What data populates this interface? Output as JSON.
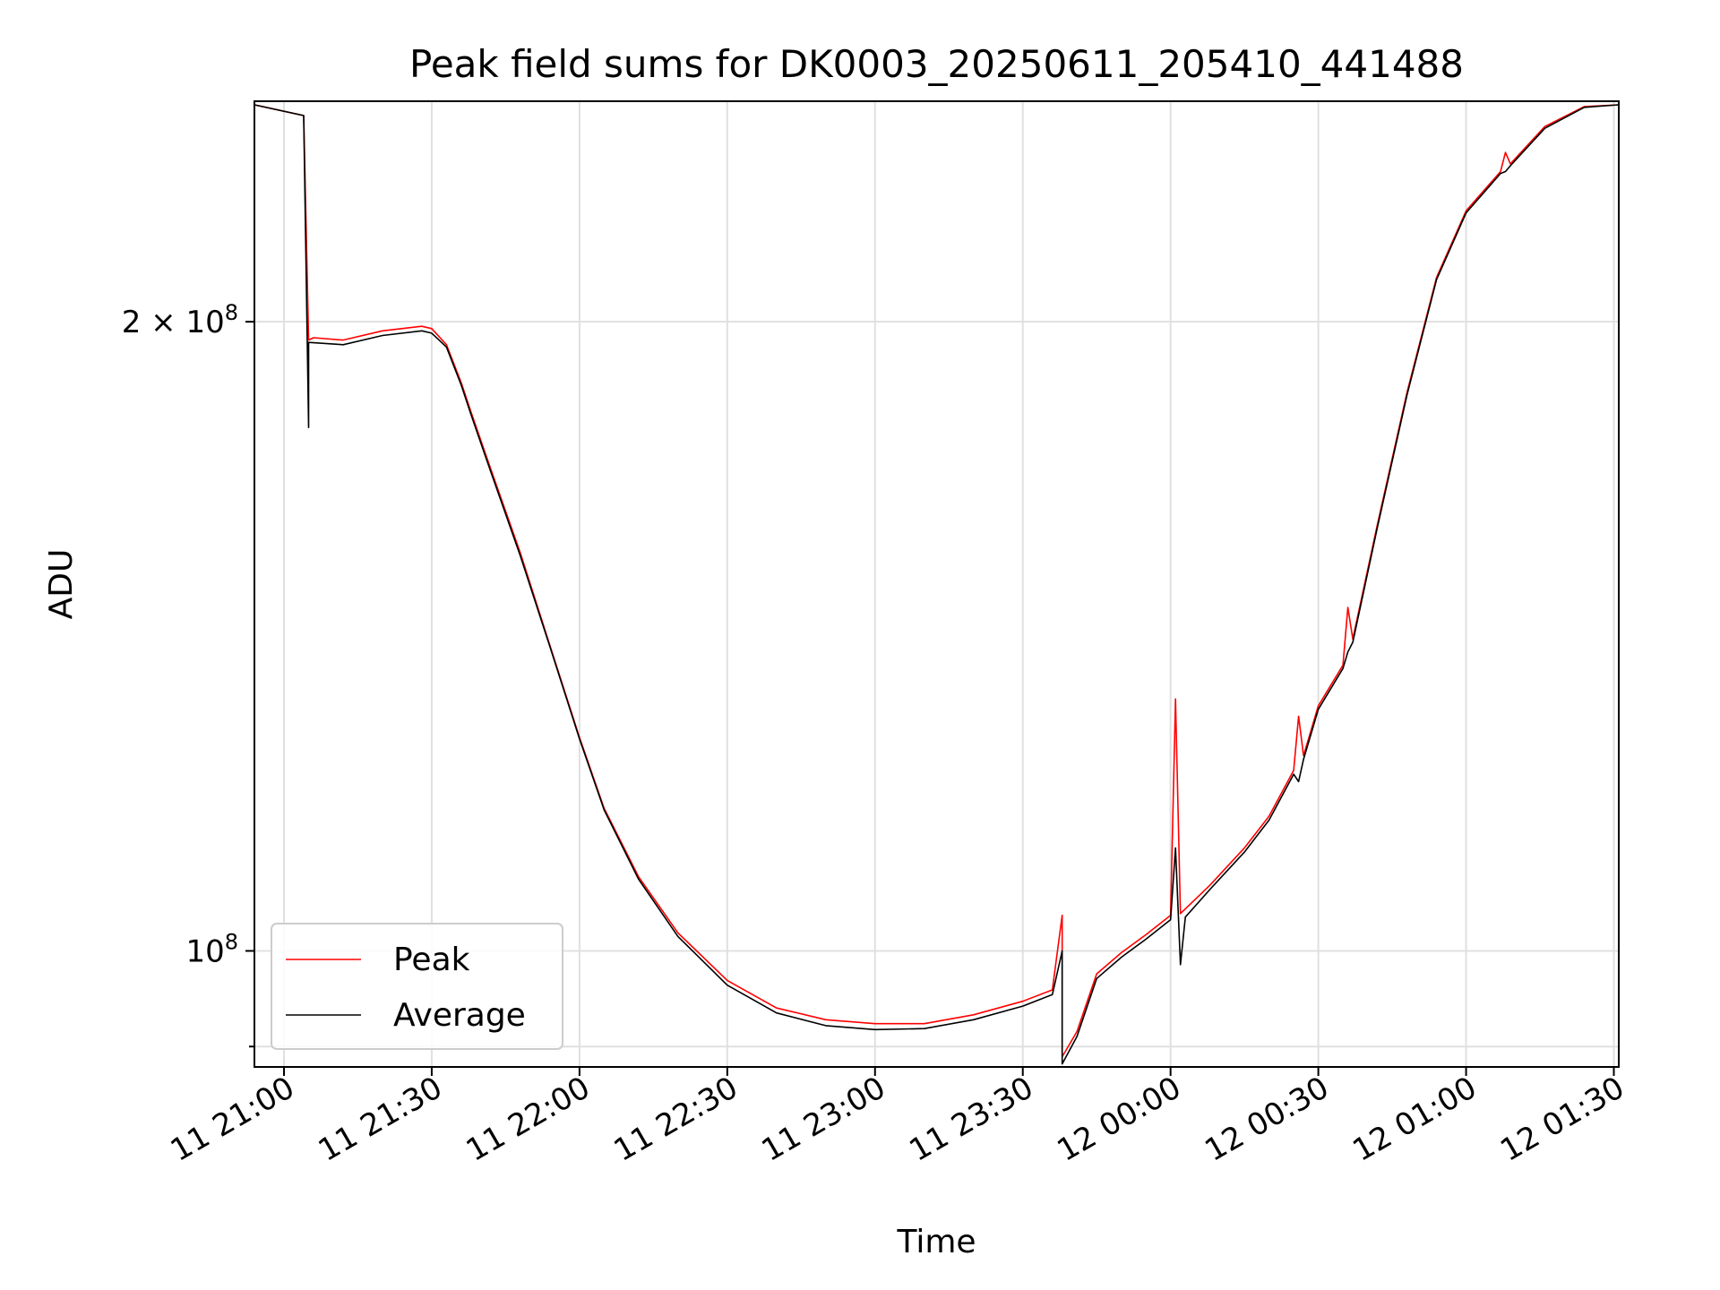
{
  "chart_data": {
    "type": "line",
    "title": "Peak field sums for DK0003_20250611_205410_441488",
    "xlabel": "Time",
    "ylabel": "ADU",
    "yscale": "log",
    "grid": true,
    "legend_location": "lower-left",
    "x_ticks": [
      "11 21:00",
      "11 21:30",
      "11 22:00",
      "11 22:30",
      "11 23:00",
      "11 23:30",
      "12 00:00",
      "12 00:30",
      "12 01:00",
      "12 01:30"
    ],
    "y_ticks": [
      {
        "value": 200000000,
        "base": "2 × 10",
        "exp": "8"
      },
      {
        "value": 100000000,
        "base": "10",
        "exp": "8"
      }
    ],
    "xlim": [
      "2025-06-11 20:54",
      "2025-06-12 01:31"
    ],
    "ylim": [
      88000000,
      255000000
    ],
    "series": [
      {
        "name": "Peak",
        "color": "#ff0000",
        "points": [
          [
            "2025-06-11 20:54",
            254000000
          ],
          [
            "2025-06-11 21:04",
            251000000
          ],
          [
            "2025-06-11 21:05",
            196000000
          ],
          [
            "2025-06-11 21:06",
            196500000
          ],
          [
            "2025-06-11 21:12",
            196000000
          ],
          [
            "2025-06-11 21:20",
            198000000
          ],
          [
            "2025-06-11 21:28",
            199000000
          ],
          [
            "2025-06-11 21:30",
            198500000
          ],
          [
            "2025-06-11 21:33",
            195000000
          ],
          [
            "2025-06-11 21:36",
            187000000
          ],
          [
            "2025-06-11 21:38",
            181000000
          ],
          [
            "2025-06-11 21:42",
            170000000
          ],
          [
            "2025-06-11 21:48",
            155000000
          ],
          [
            "2025-06-11 21:54",
            140000000
          ],
          [
            "2025-06-11 22:00",
            126500000
          ],
          [
            "2025-06-11 22:05",
            117000000
          ],
          [
            "2025-06-11 22:12",
            108500000
          ],
          [
            "2025-06-11 22:20",
            102000000
          ],
          [
            "2025-06-11 22:30",
            96800000
          ],
          [
            "2025-06-11 22:40",
            93900000
          ],
          [
            "2025-06-11 22:50",
            92700000
          ],
          [
            "2025-06-11 23:00",
            92300000
          ],
          [
            "2025-06-11 23:10",
            92300000
          ],
          [
            "2025-06-11 23:20",
            93200000
          ],
          [
            "2025-06-11 23:30",
            94600000
          ],
          [
            "2025-06-11 23:36",
            95800000
          ],
          [
            "2025-06-11 23:38",
            104000000
          ],
          [
            "2025-06-11 23:38",
            89000000
          ],
          [
            "2025-06-11 23:41",
            91500000
          ],
          [
            "2025-06-11 23:45",
            97500000
          ],
          [
            "2025-06-11 23:50",
            99800000
          ],
          [
            "2025-06-11 23:55",
            101800000
          ],
          [
            "2025-06-12 00:00",
            104000000
          ],
          [
            "2025-06-12 00:01",
            132000000
          ],
          [
            "2025-06-12 00:02",
            104200000
          ],
          [
            "2025-06-12 00:08",
            107500000
          ],
          [
            "2025-06-12 00:15",
            112000000
          ],
          [
            "2025-06-12 00:20",
            116000000
          ],
          [
            "2025-06-12 00:25",
            122000000
          ],
          [
            "2025-06-12 00:26",
            129500000
          ],
          [
            "2025-06-12 00:27",
            124000000
          ],
          [
            "2025-06-12 00:30",
            131000000
          ],
          [
            "2025-06-12 00:35",
            137000000
          ],
          [
            "2025-06-12 00:36",
            146000000
          ],
          [
            "2025-06-12 00:37",
            141000000
          ],
          [
            "2025-06-12 00:42",
            160000000
          ],
          [
            "2025-06-12 00:48",
            185000000
          ],
          [
            "2025-06-12 00:54",
            210000000
          ],
          [
            "2025-06-12 01:00",
            226000000
          ],
          [
            "2025-06-12 01:07",
            236000000
          ],
          [
            "2025-06-12 01:08",
            241000000
          ],
          [
            "2025-06-12 01:09",
            238000000
          ],
          [
            "2025-06-12 01:16",
            248000000
          ],
          [
            "2025-06-12 01:24",
            253500000
          ],
          [
            "2025-06-12 01:31",
            254000000
          ]
        ]
      },
      {
        "name": "Average",
        "color": "#000000",
        "points": [
          [
            "2025-06-11 20:54",
            254000000
          ],
          [
            "2025-06-11 21:04",
            251000000
          ],
          [
            "2025-06-11 21:05",
            178000000
          ],
          [
            "2025-06-11 21:05",
            195500000
          ],
          [
            "2025-06-11 21:12",
            195000000
          ],
          [
            "2025-06-11 21:20",
            197000000
          ],
          [
            "2025-06-11 21:28",
            198000000
          ],
          [
            "2025-06-11 21:30",
            197500000
          ],
          [
            "2025-06-11 21:33",
            194500000
          ],
          [
            "2025-06-11 21:36",
            186500000
          ],
          [
            "2025-06-11 21:38",
            180500000
          ],
          [
            "2025-06-11 21:42",
            169500000
          ],
          [
            "2025-06-11 21:48",
            154500000
          ],
          [
            "2025-06-11 21:54",
            139800000
          ],
          [
            "2025-06-11 22:00",
            126300000
          ],
          [
            "2025-06-11 22:05",
            116800000
          ],
          [
            "2025-06-11 22:12",
            108200000
          ],
          [
            "2025-06-11 22:20",
            101600000
          ],
          [
            "2025-06-11 22:30",
            96300000
          ],
          [
            "2025-06-11 22:40",
            93400000
          ],
          [
            "2025-06-11 22:50",
            92100000
          ],
          [
            "2025-06-11 23:00",
            91700000
          ],
          [
            "2025-06-11 23:10",
            91800000
          ],
          [
            "2025-06-11 23:20",
            92700000
          ],
          [
            "2025-06-11 23:30",
            94100000
          ],
          [
            "2025-06-11 23:36",
            95300000
          ],
          [
            "2025-06-11 23:38",
            100000000
          ],
          [
            "2025-06-11 23:38",
            88300000
          ],
          [
            "2025-06-11 23:41",
            91000000
          ],
          [
            "2025-06-11 23:45",
            97000000
          ],
          [
            "2025-06-11 23:50",
            99300000
          ],
          [
            "2025-06-11 23:55",
            101300000
          ],
          [
            "2025-06-12 00:00",
            103500000
          ],
          [
            "2025-06-12 00:01",
            112000000
          ],
          [
            "2025-06-12 00:02",
            98500000
          ],
          [
            "2025-06-12 00:03",
            103800000
          ],
          [
            "2025-06-12 00:08",
            107000000
          ],
          [
            "2025-06-12 00:15",
            111500000
          ],
          [
            "2025-06-12 00:20",
            115500000
          ],
          [
            "2025-06-12 00:25",
            121500000
          ],
          [
            "2025-06-12 00:26",
            120500000
          ],
          [
            "2025-06-12 00:27",
            123500000
          ],
          [
            "2025-06-12 00:30",
            130500000
          ],
          [
            "2025-06-12 00:35",
            136500000
          ],
          [
            "2025-06-12 00:36",
            139000000
          ],
          [
            "2025-06-12 00:37",
            140500000
          ],
          [
            "2025-06-12 00:42",
            159500000
          ],
          [
            "2025-06-12 00:48",
            184500000
          ],
          [
            "2025-06-12 00:54",
            209500000
          ],
          [
            "2025-06-12 01:00",
            225500000
          ],
          [
            "2025-06-12 01:07",
            235500000
          ],
          [
            "2025-06-12 01:08",
            236000000
          ],
          [
            "2025-06-12 01:09",
            237500000
          ],
          [
            "2025-06-12 01:16",
            247500000
          ],
          [
            "2025-06-12 01:24",
            253300000
          ],
          [
            "2025-06-12 01:31",
            254000000
          ]
        ]
      }
    ]
  }
}
